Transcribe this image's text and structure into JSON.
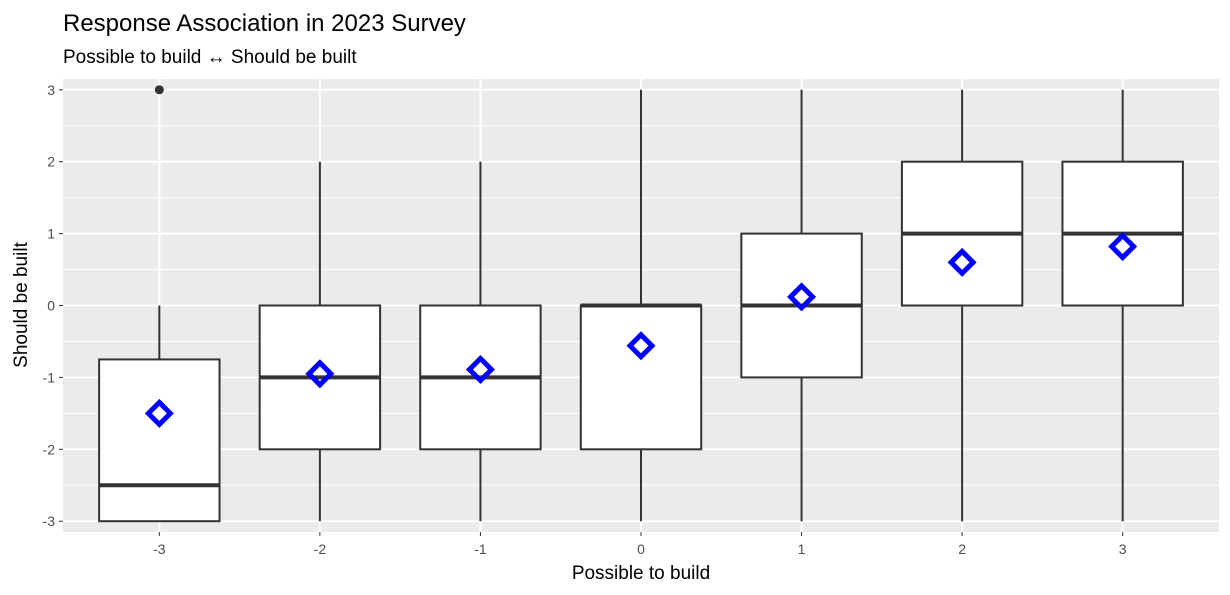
{
  "chart_data": {
    "type": "box",
    "title": "Response Association in 2023 Survey",
    "subtitle": "Possible to build ↔ Should be built",
    "xlabel": "Possible to build",
    "ylabel": "Should be built",
    "categories": [
      "-3",
      "-2",
      "-1",
      "0",
      "1",
      "2",
      "3"
    ],
    "x": [
      -3,
      -2,
      -1,
      0,
      1,
      2,
      3
    ],
    "xlim": [
      -3.6,
      3.6
    ],
    "ylim": [
      -3.15,
      3.15
    ],
    "yticks": [
      -3,
      -2,
      -1,
      0,
      1,
      2,
      3
    ],
    "ytick_labels": [
      "-3",
      "-2",
      "-1",
      "0",
      "1",
      "2",
      "3"
    ],
    "grid": true,
    "legend": "none",
    "boxes": [
      {
        "x": -3,
        "whisker_low": -3,
        "q1": -3,
        "median": -2.5,
        "q3": -0.75,
        "whisker_high": 0,
        "mean": -1.5,
        "outliers": [
          3
        ]
      },
      {
        "x": -2,
        "whisker_low": -3,
        "q1": -2,
        "median": -1,
        "q3": 0,
        "whisker_high": 2,
        "mean": -0.95,
        "outliers": []
      },
      {
        "x": -1,
        "whisker_low": -3,
        "q1": -2,
        "median": -1,
        "q3": 0,
        "whisker_high": 2,
        "mean": -0.89,
        "outliers": []
      },
      {
        "x": 0,
        "whisker_low": -3,
        "q1": -2,
        "median": 0,
        "q3": 0,
        "whisker_high": 3,
        "mean": -0.56,
        "outliers": []
      },
      {
        "x": 1,
        "whisker_low": -3,
        "q1": -1,
        "median": 0,
        "q3": 1,
        "whisker_high": 3,
        "mean": 0.12,
        "outliers": []
      },
      {
        "x": 2,
        "whisker_low": -3,
        "q1": 0,
        "median": 1,
        "q3": 2,
        "whisker_high": 3,
        "mean": 0.6,
        "outliers": []
      },
      {
        "x": 3,
        "whisker_low": -3,
        "q1": 0,
        "median": 1,
        "q3": 2,
        "whisker_high": 3,
        "mean": 0.82,
        "outliers": []
      }
    ],
    "colors": {
      "panel_background": "#ebebeb",
      "grid_line": "#ffffff",
      "box_fill": "#ffffff",
      "box_stroke": "#333333",
      "mean_marker": "#0000ff",
      "outlier": "#333333"
    }
  }
}
